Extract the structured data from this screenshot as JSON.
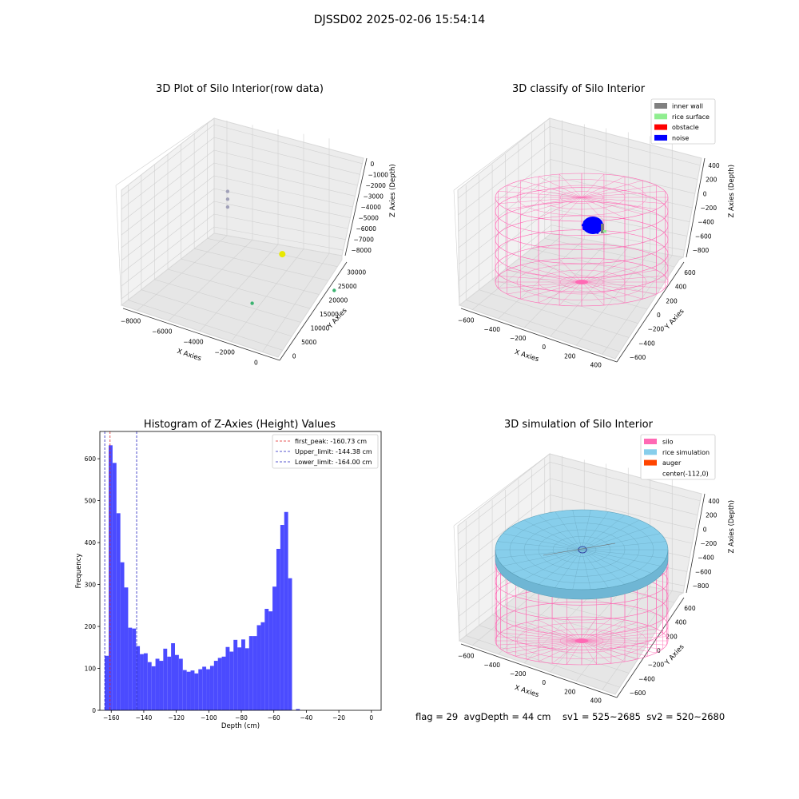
{
  "figure_title": "DJSSD02 2025-02-06 15:54:14",
  "status_line": "flag = 29  avgDepth = 44 cm    sv1 = 525~2685  sv2 = 520~2680",
  "colors": {
    "histogram": "#4b4bff",
    "first_peak": "#e02020",
    "limits": "#2020c0",
    "silo": "#ff69b4",
    "rice_simulation": "#87ceeb",
    "auger": "#ff4500",
    "inner_wall": "#808080",
    "rice_surface": "#90ee90",
    "obstacle": "#ff0000",
    "noise": "#0000ff"
  },
  "chart_data": [
    {
      "type": "scatter",
      "title": "3D Plot of Silo Interior(row data)",
      "xlabel": "X Axies",
      "ylabel": "Y Axies",
      "zlabel": "Z Axies (Depth)",
      "x_ticks": [
        "−8000",
        "−6000",
        "−4000",
        "−2000",
        "0"
      ],
      "y_ticks": [
        "0",
        "5000",
        "10000",
        "15000",
        "20000",
        "25000",
        "30000"
      ],
      "z_ticks": [
        "0",
        "−1000",
        "−2000",
        "−3000",
        "−4000",
        "−5000",
        "−6000",
        "−7000",
        "−8000"
      ],
      "xlim": [
        -8500,
        500
      ],
      "ylim": [
        0,
        32000
      ],
      "zlim": [
        -8000,
        0
      ],
      "points": [
        {
          "x": -7300,
          "y": 31000,
          "z": -3800,
          "color": "#a0a0b8"
        },
        {
          "x": -7300,
          "y": 31000,
          "z": -4400,
          "color": "#a0a0b8"
        },
        {
          "x": -7300,
          "y": 31000,
          "z": -5000,
          "color": "#a0a0b8"
        },
        {
          "x": -4000,
          "y": 30000,
          "z": -7000,
          "color": "#e8e800"
        },
        {
          "x": -3200,
          "y": 14000,
          "z": -7800,
          "color": "#3cb371"
        },
        {
          "x": -700,
          "y": 28000,
          "z": -8000,
          "color": "#3cb371"
        }
      ]
    },
    {
      "type": "scatter",
      "title": "3D classify of Silo Interior",
      "xlabel": "X Axies",
      "ylabel": "Y Axies",
      "zlabel": "Z Axies (Depth)",
      "x_ticks": [
        "−600",
        "−400",
        "−200",
        "0",
        "200",
        "400"
      ],
      "y_ticks": [
        "−600",
        "−400",
        "−200",
        "0",
        "200",
        "400",
        "600"
      ],
      "z_ticks": [
        "400",
        "200",
        "0",
        "−200",
        "−400",
        "−600",
        "−800"
      ],
      "legend": [
        "inner wall",
        "rice surface",
        "obstacle",
        "noise"
      ],
      "legend_position": "top-right"
    },
    {
      "type": "bar",
      "title": "Histogram of Z-Axies (Height) Values",
      "xlabel": "Depth (cm)",
      "ylabel": "Frequency",
      "xlim": [
        -167,
        6
      ],
      "ylim": [
        0,
        665
      ],
      "x_ticks": [
        -160,
        -140,
        -120,
        -100,
        -80,
        -60,
        -40,
        -20,
        0
      ],
      "y_ticks": [
        0,
        100,
        200,
        300,
        400,
        500,
        600
      ],
      "bin_start": -164,
      "bin_width": 2.4,
      "values": [
        130,
        632,
        590,
        470,
        353,
        293,
        197,
        195,
        153,
        134,
        136,
        115,
        105,
        123,
        118,
        147,
        128,
        160,
        132,
        123,
        96,
        92,
        95,
        88,
        98,
        104,
        98,
        106,
        118,
        125,
        128,
        151,
        140,
        168,
        150,
        169,
        148,
        177,
        177,
        203,
        210,
        242,
        236,
        295,
        385,
        442,
        473,
        315,
        0,
        3
      ],
      "vlines": [
        {
          "label": "first_peak: -160.73 cm",
          "x": -160.73,
          "style": "first_peak"
        },
        {
          "label": "Upper_limit: -144.38 cm",
          "x": -144.38,
          "style": "limits"
        },
        {
          "label": "Lower_limit: -164.00 cm",
          "x": -164.0,
          "style": "limits"
        }
      ],
      "legend_position": "top-right"
    },
    {
      "type": "scatter",
      "title": "3D simulation of Silo Interior",
      "xlabel": "X Axies",
      "ylabel": "Y Axies",
      "zlabel": "Z Axies (Depth)",
      "x_ticks": [
        "−600",
        "−400",
        "−200",
        "0",
        "200",
        "400"
      ],
      "y_ticks": [
        "−600",
        "−400",
        "−200",
        "0",
        "200",
        "400",
        "600"
      ],
      "z_ticks": [
        "400",
        "200",
        "0",
        "−200",
        "−400",
        "−600",
        "−800"
      ],
      "legend": [
        "silo",
        "rice simulation",
        "auger",
        "center(-112,0)"
      ],
      "legend_position": "top-right"
    }
  ]
}
